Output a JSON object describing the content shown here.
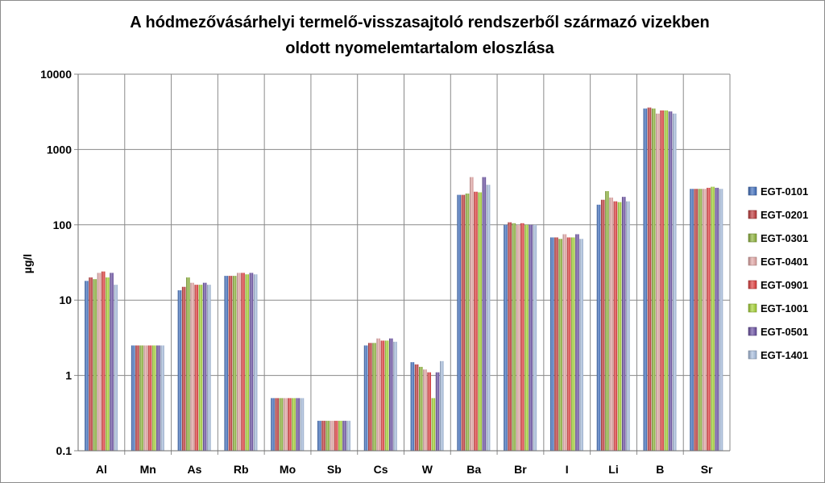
{
  "chart_data": {
    "type": "bar",
    "title_lines": [
      "A hódmezővásárhelyi termelő-visszasajtoló rendszerből származó  vizekben",
      "oldott nyomelemtartalom eloszlása"
    ],
    "xlabel": "",
    "ylabel": "µg/l",
    "yscale": "log",
    "ylim": [
      0.1,
      10000
    ],
    "yticks": [
      "0.1",
      "1",
      "10",
      "100",
      "1000",
      "10000"
    ],
    "grid": true,
    "legend_position": "right",
    "categories": [
      "Al",
      "Mn",
      "As",
      "Rb",
      "Mo",
      "Sb",
      "Cs",
      "W",
      "Ba",
      "Br",
      "I",
      "Li",
      "B",
      "Sr"
    ],
    "series": [
      {
        "name": "EGT-0101",
        "color": "#3f6fbf",
        "values": [
          18,
          2.5,
          13.5,
          21,
          0.5,
          0.25,
          2.5,
          1.5,
          250,
          100,
          68,
          185,
          3500,
          300
        ]
      },
      {
        "name": "EGT-0201",
        "color": "#c0393b",
        "values": [
          20,
          2.5,
          15,
          21,
          0.5,
          0.25,
          2.7,
          1.4,
          250,
          108,
          68,
          215,
          3600,
          300
        ]
      },
      {
        "name": "EGT-0301",
        "color": "#8db33a",
        "values": [
          19,
          2.5,
          20,
          21,
          0.5,
          0.25,
          2.7,
          1.3,
          260,
          105,
          65,
          280,
          3500,
          300
        ]
      },
      {
        "name": "EGT-0401",
        "color": "#e4a7a6",
        "values": [
          23,
          2.5,
          17,
          23,
          0.5,
          0.25,
          3.1,
          1.2,
          430,
          100,
          75,
          230,
          3000,
          300
        ]
      },
      {
        "name": "EGT-0901",
        "color": "#e03c3c",
        "values": [
          24,
          2.5,
          16,
          23,
          0.5,
          0.25,
          2.9,
          1.1,
          275,
          105,
          68,
          205,
          3300,
          310
        ]
      },
      {
        "name": "EGT-1001",
        "color": "#a4d232",
        "values": [
          20,
          2.5,
          16,
          22,
          0.5,
          0.25,
          2.9,
          0.5,
          270,
          100,
          68,
          200,
          3300,
          320
        ]
      },
      {
        "name": "EGT-0501",
        "color": "#6a4fa3",
        "values": [
          23,
          2.5,
          17,
          23,
          0.5,
          0.25,
          3.1,
          1.1,
          430,
          100,
          75,
          235,
          3200,
          310
        ]
      },
      {
        "name": "EGT-1401",
        "color": "#a9bfdf",
        "values": [
          16,
          2.5,
          16,
          22,
          0.5,
          0.25,
          2.8,
          1.55,
          340,
          100,
          65,
          205,
          3000,
          300
        ]
      }
    ]
  }
}
